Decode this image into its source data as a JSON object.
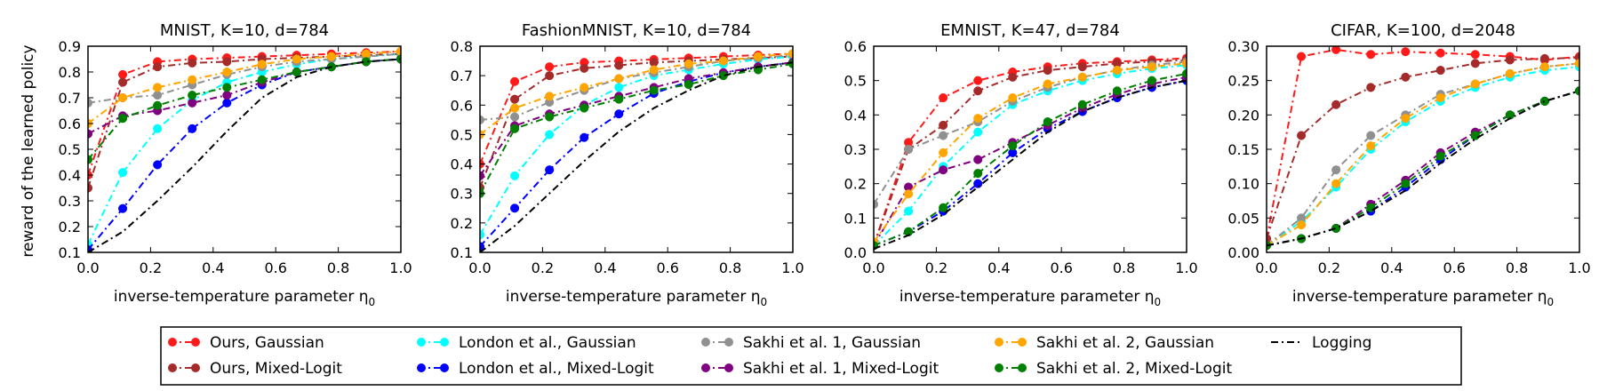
{
  "figure": {
    "ylabel": "reward of the learned policy",
    "legend_position": "bottom-center"
  },
  "series_style": [
    {
      "key": "ours_g",
      "label": "Ours, Gaussian",
      "color": "#ff1a1a",
      "marker": true,
      "dash": "8,4,2,4"
    },
    {
      "key": "ours_m",
      "label": "Ours, Mixed-Logit",
      "color": "#a52a2a",
      "marker": true,
      "dash": "8,4,2,4"
    },
    {
      "key": "lon_g",
      "label": "London et al., Gaussian",
      "color": "#00ffff",
      "marker": true,
      "dash": "8,4,2,4"
    },
    {
      "key": "lon_m",
      "label": "London et al., Mixed-Logit",
      "color": "#0000ff",
      "marker": true,
      "dash": "8,4,2,4"
    },
    {
      "key": "sak1_g",
      "label": "Sakhi et al. 1, Gaussian",
      "color": "#909090",
      "marker": true,
      "dash": "8,4,2,4"
    },
    {
      "key": "sak1_m",
      "label": "Sakhi et al. 1, Mixed-Logit",
      "color": "#800080",
      "marker": true,
      "dash": "8,4,2,4"
    },
    {
      "key": "sak2_g",
      "label": "Sakhi et al. 2, Gaussian",
      "color": "#ffa500",
      "marker": true,
      "dash": "8,4,2,4"
    },
    {
      "key": "sak2_m",
      "label": "Sakhi et al. 2, Mixed-Logit",
      "color": "#008000",
      "marker": true,
      "dash": "8,4,2,4"
    },
    {
      "key": "logging",
      "label": "Logging",
      "color": "#000000",
      "marker": false,
      "dash": "8,4,2,4"
    }
  ],
  "chart_data": [
    {
      "type": "line",
      "title": "MNIST, K=10, d=784",
      "xlabel": "inverse-temperature parameter η",
      "xlabel_subscript": "0",
      "ylabel": "reward of the learned policy",
      "xlim": [
        0.0,
        1.0
      ],
      "ylim": [
        0.1,
        0.9
      ],
      "xticks": [
        "0.0",
        "0.2",
        "0.4",
        "0.6",
        "0.8",
        "1.0"
      ],
      "yticks": [
        "0.1",
        "0.2",
        "0.3",
        "0.4",
        "0.5",
        "0.6",
        "0.7",
        "0.8",
        "0.9"
      ],
      "x": [
        0.0,
        0.111,
        0.222,
        0.333,
        0.444,
        0.556,
        0.667,
        0.778,
        0.889,
        1.0
      ],
      "series": [
        {
          "name": "Ours, Gaussian",
          "values": [
            0.4,
            0.79,
            0.84,
            0.85,
            0.855,
            0.86,
            0.865,
            0.87,
            0.875,
            0.88
          ]
        },
        {
          "name": "Ours, Mixed-Logit",
          "values": [
            0.35,
            0.76,
            0.82,
            0.835,
            0.84,
            0.85,
            0.855,
            0.86,
            0.865,
            0.87
          ]
        },
        {
          "name": "London et al., Gaussian",
          "values": [
            0.13,
            0.41,
            0.58,
            0.69,
            0.76,
            0.8,
            0.83,
            0.85,
            0.86,
            0.87
          ]
        },
        {
          "name": "London et al., Mixed-Logit",
          "values": [
            0.11,
            0.27,
            0.44,
            0.58,
            0.68,
            0.75,
            0.8,
            0.82,
            0.84,
            0.85
          ]
        },
        {
          "name": "Sakhi et al. 1, Gaussian",
          "values": [
            0.68,
            0.7,
            0.71,
            0.75,
            0.79,
            0.82,
            0.84,
            0.85,
            0.86,
            0.87
          ]
        },
        {
          "name": "Sakhi et al. 1, Mixed-Logit",
          "values": [
            0.56,
            0.63,
            0.65,
            0.68,
            0.71,
            0.76,
            0.8,
            0.82,
            0.84,
            0.85
          ]
        },
        {
          "name": "Sakhi et al. 2, Gaussian",
          "values": [
            0.6,
            0.7,
            0.74,
            0.77,
            0.8,
            0.83,
            0.85,
            0.86,
            0.87,
            0.88
          ]
        },
        {
          "name": "Sakhi et al. 2, Mixed-Logit",
          "values": [
            0.46,
            0.62,
            0.67,
            0.71,
            0.74,
            0.77,
            0.8,
            0.82,
            0.84,
            0.85
          ]
        },
        {
          "name": "Logging",
          "values": [
            0.1,
            0.18,
            0.3,
            0.43,
            0.57,
            0.7,
            0.78,
            0.82,
            0.84,
            0.85
          ]
        }
      ]
    },
    {
      "type": "line",
      "title": "FashionMNIST, K=10, d=784",
      "xlabel": "inverse-temperature parameter η",
      "xlabel_subscript": "0",
      "xlim": [
        0.0,
        1.0
      ],
      "ylim": [
        0.1,
        0.8
      ],
      "xticks": [
        "0.0",
        "0.2",
        "0.4",
        "0.6",
        "0.8",
        "1.0"
      ],
      "yticks": [
        "0.1",
        "0.2",
        "0.3",
        "0.4",
        "0.5",
        "0.6",
        "0.7",
        "0.8"
      ],
      "x": [
        0.0,
        0.111,
        0.222,
        0.333,
        0.444,
        0.556,
        0.667,
        0.778,
        0.889,
        1.0
      ],
      "series": [
        {
          "name": "Ours, Gaussian",
          "values": [
            0.4,
            0.68,
            0.73,
            0.745,
            0.75,
            0.755,
            0.76,
            0.765,
            0.77,
            0.775
          ]
        },
        {
          "name": "Ours, Mixed-Logit",
          "values": [
            0.32,
            0.62,
            0.7,
            0.725,
            0.735,
            0.745,
            0.75,
            0.755,
            0.76,
            0.765
          ]
        },
        {
          "name": "London et al., Gaussian",
          "values": [
            0.16,
            0.36,
            0.5,
            0.6,
            0.66,
            0.7,
            0.72,
            0.74,
            0.755,
            0.765
          ]
        },
        {
          "name": "London et al., Mixed-Logit",
          "values": [
            0.12,
            0.25,
            0.38,
            0.49,
            0.57,
            0.64,
            0.68,
            0.71,
            0.73,
            0.745
          ]
        },
        {
          "name": "Sakhi et al. 1, Gaussian",
          "values": [
            0.55,
            0.56,
            0.61,
            0.65,
            0.69,
            0.71,
            0.73,
            0.75,
            0.76,
            0.77
          ]
        },
        {
          "name": "Sakhi et al. 1, Mixed-Logit",
          "values": [
            0.36,
            0.53,
            0.57,
            0.6,
            0.63,
            0.66,
            0.69,
            0.71,
            0.73,
            0.745
          ]
        },
        {
          "name": "Sakhi et al. 2, Gaussian",
          "values": [
            0.5,
            0.59,
            0.63,
            0.66,
            0.69,
            0.72,
            0.74,
            0.75,
            0.765,
            0.775
          ]
        },
        {
          "name": "Sakhi et al. 2, Mixed-Logit",
          "values": [
            0.3,
            0.52,
            0.56,
            0.59,
            0.62,
            0.65,
            0.67,
            0.7,
            0.72,
            0.74
          ]
        },
        {
          "name": "Logging",
          "values": [
            0.1,
            0.19,
            0.3,
            0.41,
            0.51,
            0.59,
            0.65,
            0.7,
            0.73,
            0.745
          ]
        }
      ]
    },
    {
      "type": "line",
      "title": "EMNIST, K=47, d=784",
      "xlabel": "inverse-temperature parameter η",
      "xlabel_subscript": "0",
      "xlim": [
        0.0,
        1.0
      ],
      "ylim": [
        0.0,
        0.6
      ],
      "xticks": [
        "0.0",
        "0.2",
        "0.4",
        "0.6",
        "0.8",
        "1.0"
      ],
      "yticks": [
        "0.0",
        "0.1",
        "0.2",
        "0.3",
        "0.4",
        "0.5",
        "0.6"
      ],
      "x": [
        0.0,
        0.111,
        0.222,
        0.333,
        0.444,
        0.556,
        0.667,
        0.778,
        0.889,
        1.0
      ],
      "series": [
        {
          "name": "Ours, Gaussian",
          "values": [
            0.02,
            0.32,
            0.45,
            0.5,
            0.525,
            0.54,
            0.55,
            0.555,
            0.56,
            0.565
          ]
        },
        {
          "name": "Ours, Mixed-Logit",
          "values": [
            0.02,
            0.3,
            0.37,
            0.47,
            0.51,
            0.53,
            0.54,
            0.55,
            0.555,
            0.56
          ]
        },
        {
          "name": "London et al., Gaussian",
          "values": [
            0.02,
            0.12,
            0.25,
            0.35,
            0.43,
            0.47,
            0.5,
            0.52,
            0.535,
            0.545
          ]
        },
        {
          "name": "London et al., Mixed-Logit",
          "values": [
            0.02,
            0.06,
            0.12,
            0.2,
            0.29,
            0.36,
            0.41,
            0.45,
            0.48,
            0.5
          ]
        },
        {
          "name": "Sakhi et al. 1, Gaussian",
          "values": [
            0.14,
            0.3,
            0.34,
            0.38,
            0.44,
            0.48,
            0.51,
            0.53,
            0.545,
            0.555
          ]
        },
        {
          "name": "Sakhi et al. 1, Mixed-Logit",
          "values": [
            0.02,
            0.19,
            0.24,
            0.27,
            0.32,
            0.37,
            0.42,
            0.46,
            0.49,
            0.51
          ]
        },
        {
          "name": "Sakhi et al. 2, Gaussian",
          "values": [
            0.03,
            0.17,
            0.29,
            0.39,
            0.45,
            0.49,
            0.51,
            0.53,
            0.54,
            0.55
          ]
        },
        {
          "name": "Sakhi et al. 2, Mixed-Logit",
          "values": [
            0.02,
            0.06,
            0.13,
            0.23,
            0.31,
            0.38,
            0.43,
            0.47,
            0.5,
            0.52
          ]
        },
        {
          "name": "Logging",
          "values": [
            0.01,
            0.05,
            0.11,
            0.19,
            0.27,
            0.35,
            0.41,
            0.45,
            0.48,
            0.5
          ]
        }
      ]
    },
    {
      "type": "line",
      "title": "CIFAR, K=100, d=2048",
      "xlabel": "inverse-temperature parameter η",
      "xlabel_subscript": "0",
      "xlim": [
        0.0,
        1.0
      ],
      "ylim": [
        0.0,
        0.3
      ],
      "xticks": [
        "0.0",
        "0.2",
        "0.4",
        "0.6",
        "0.8",
        "1.0"
      ],
      "yticks": [
        "0.00",
        "0.05",
        "0.10",
        "0.15",
        "0.20",
        "0.25",
        "0.30"
      ],
      "x": [
        0.0,
        0.111,
        0.222,
        0.333,
        0.444,
        0.556,
        0.667,
        0.778,
        0.889,
        1.0
      ],
      "series": [
        {
          "name": "Ours, Gaussian",
          "values": [
            0.02,
            0.285,
            0.295,
            0.288,
            0.292,
            0.29,
            0.288,
            0.285,
            0.28,
            0.285
          ]
        },
        {
          "name": "Ours, Mixed-Logit",
          "values": [
            0.02,
            0.17,
            0.215,
            0.24,
            0.255,
            0.265,
            0.275,
            0.28,
            0.282,
            0.283
          ]
        },
        {
          "name": "London et al., Gaussian",
          "values": [
            0.01,
            0.045,
            0.095,
            0.15,
            0.19,
            0.22,
            0.24,
            0.255,
            0.265,
            0.27
          ]
        },
        {
          "name": "London et al., Mixed-Logit",
          "values": [
            0.01,
            0.02,
            0.035,
            0.06,
            0.095,
            0.135,
            0.17,
            0.2,
            0.22,
            0.235
          ]
        },
        {
          "name": "Sakhi et al. 1, Gaussian",
          "values": [
            0.01,
            0.05,
            0.12,
            0.17,
            0.2,
            0.23,
            0.245,
            0.26,
            0.27,
            0.275
          ]
        },
        {
          "name": "Sakhi et al. 1, Mixed-Logit",
          "values": [
            0.01,
            0.02,
            0.035,
            0.07,
            0.105,
            0.145,
            0.175,
            0.2,
            0.22,
            0.235
          ]
        },
        {
          "name": "Sakhi et al. 2, Gaussian",
          "values": [
            0.01,
            0.04,
            0.1,
            0.155,
            0.195,
            0.225,
            0.245,
            0.26,
            0.27,
            0.275
          ]
        },
        {
          "name": "Sakhi et al. 2, Mixed-Logit",
          "values": [
            0.01,
            0.02,
            0.035,
            0.065,
            0.1,
            0.14,
            0.17,
            0.2,
            0.22,
            0.235
          ]
        },
        {
          "name": "Logging",
          "values": [
            0.01,
            0.02,
            0.035,
            0.06,
            0.09,
            0.13,
            0.165,
            0.195,
            0.22,
            0.235
          ]
        }
      ]
    }
  ]
}
